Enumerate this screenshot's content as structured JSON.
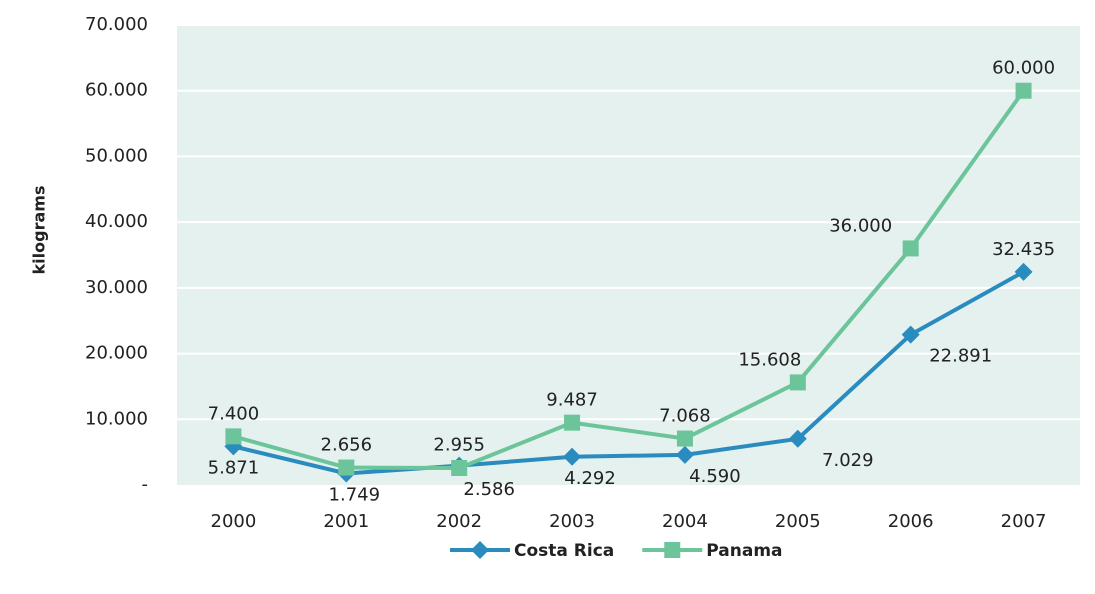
{
  "chart_data": {
    "type": "line",
    "categories": [
      "2000",
      "2001",
      "2002",
      "2003",
      "2004",
      "2005",
      "2006",
      "2007"
    ],
    "series": [
      {
        "name": "Costa Rica",
        "color": "#2a8bbf",
        "marker": "diamond",
        "values": [
          5871,
          1749,
          2955,
          4292,
          4590,
          7029,
          22891,
          32435
        ],
        "value_labels": [
          "5.871",
          "1.749",
          "2.955",
          "4.292",
          "4.590",
          "7.029",
          "22.891",
          "32.435"
        ]
      },
      {
        "name": "Panama",
        "color": "#6cc49a",
        "marker": "square",
        "values": [
          7400,
          2656,
          2586,
          9487,
          7068,
          15608,
          36000,
          60000
        ],
        "value_labels": [
          "7.400",
          "2.656",
          "2.586",
          "9.487",
          "7.068",
          "15.608",
          "36.000",
          "60.000"
        ]
      }
    ],
    "ylabel": "kilograms",
    "ylim": [
      0,
      70000
    ],
    "yticks": [
      {
        "value": 0,
        "label": "-"
      },
      {
        "value": 10000,
        "label": "10.000"
      },
      {
        "value": 20000,
        "label": "20.000"
      },
      {
        "value": 30000,
        "label": "30.000"
      },
      {
        "value": 40000,
        "label": "40.000"
      },
      {
        "value": 50000,
        "label": "50.000"
      },
      {
        "value": 60000,
        "label": "60.000"
      },
      {
        "value": 70000,
        "label": "70.000"
      }
    ],
    "grid": true,
    "legend": "bottom"
  }
}
